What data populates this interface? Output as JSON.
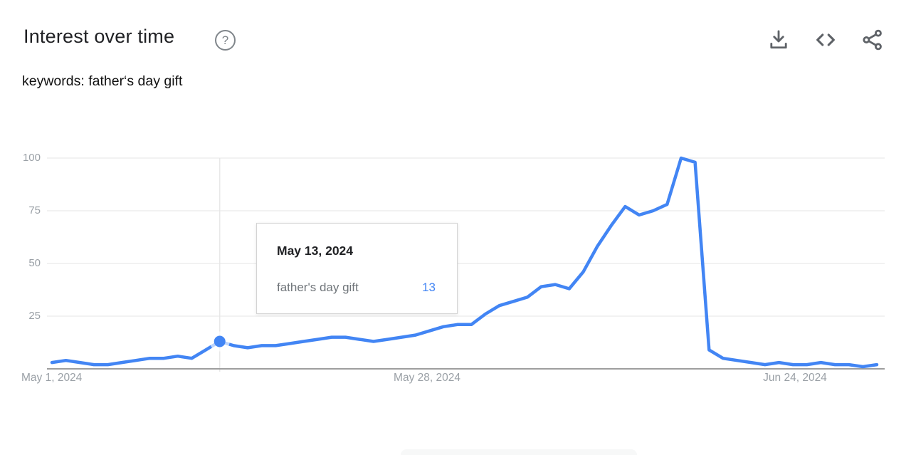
{
  "header": {
    "title": "Interest over time",
    "help_label": "?",
    "actions": [
      {
        "icon": "download-icon"
      },
      {
        "icon": "embed-icon"
      },
      {
        "icon": "share-icon"
      }
    ]
  },
  "subtitle": "keywords: father‘s day gift",
  "tooltip": {
    "date": "May 13, 2024",
    "series_label": "father's day gift",
    "value": "13"
  },
  "colors": {
    "line_blue": "#4285f4",
    "tooltip_value_blue": "#4285f4",
    "axis_text_gray": "#9aa0a6",
    "gridline_gray": "#e9e9e9",
    "baseline_gray": "#9e9e9e"
  },
  "chart_data": {
    "type": "line",
    "title": "Interest over time",
    "keyword": "father's day gift",
    "cadence": "daily",
    "grid": "horizontal",
    "legend": "none",
    "ylim": [
      0,
      100
    ],
    "y_ticks": [
      25,
      50,
      75,
      100
    ],
    "x_tick_labels": [
      "May 1, 2024",
      "May 28, 2024",
      "Jun 24, 2024"
    ],
    "x_range": {
      "start": "May 1, 2024",
      "end": "Jun 29, 2024"
    },
    "dates": [
      "May 1",
      "May 2",
      "May 3",
      "May 4",
      "May 5",
      "May 6",
      "May 7",
      "May 8",
      "May 9",
      "May 10",
      "May 11",
      "May 12",
      "May 13",
      "May 14",
      "May 15",
      "May 16",
      "May 17",
      "May 18",
      "May 19",
      "May 20",
      "May 21",
      "May 22",
      "May 23",
      "May 24",
      "May 25",
      "May 26",
      "May 27",
      "May 28",
      "May 29",
      "May 30",
      "May 31",
      "Jun 1",
      "Jun 2",
      "Jun 3",
      "Jun 4",
      "Jun 5",
      "Jun 6",
      "Jun 7",
      "Jun 8",
      "Jun 9",
      "Jun 10",
      "Jun 11",
      "Jun 12",
      "Jun 13",
      "Jun 14",
      "Jun 15",
      "Jun 16",
      "Jun 17",
      "Jun 18",
      "Jun 19",
      "Jun 20",
      "Jun 21",
      "Jun 22",
      "Jun 23",
      "Jun 24",
      "Jun 25",
      "Jun 26",
      "Jun 27",
      "Jun 28",
      "Jun 29"
    ],
    "series": [
      {
        "name": "father's day gift",
        "color": "#4285f4",
        "values": [
          3,
          4,
          3,
          2,
          2,
          3,
          4,
          5,
          5,
          6,
          5,
          9,
          13,
          11,
          10,
          11,
          11,
          12,
          13,
          14,
          15,
          15,
          14,
          13,
          14,
          15,
          16,
          18,
          20,
          21,
          21,
          26,
          30,
          32,
          34,
          39,
          40,
          38,
          46,
          58,
          68,
          77,
          73,
          75,
          78,
          100,
          98,
          9,
          5,
          4,
          3,
          2,
          3,
          2,
          2,
          3,
          2,
          2,
          1,
          2
        ]
      }
    ],
    "highlight": {
      "index": 12,
      "date": "May 13, 2024",
      "value": 13
    }
  }
}
